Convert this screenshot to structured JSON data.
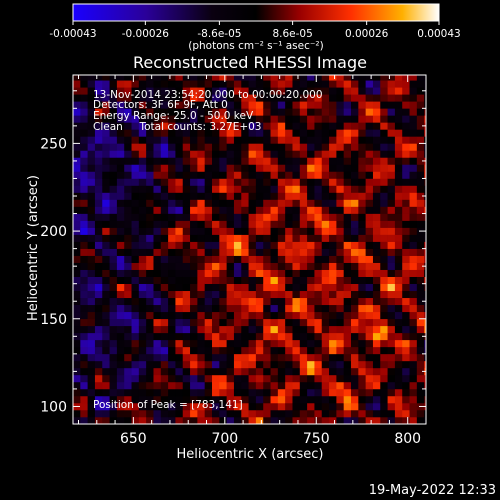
{
  "chart_data": {
    "type": "heatmap",
    "title": "Reconstructed RHESSI Image",
    "xlabel": "Heliocentric X (arcsec)",
    "ylabel": "Heliocentric Y (arcsec)",
    "xlim": [
      617,
      810
    ],
    "ylim": [
      90,
      289
    ],
    "x_ticks": [
      650,
      700,
      750,
      800
    ],
    "y_ticks": [
      100,
      150,
      200,
      250
    ],
    "colorbar": {
      "range": [
        -0.00043,
        0.00043
      ],
      "tick_values": [
        -0.00043,
        -0.00026,
        -8.6e-05,
        8.6e-05,
        0.00026,
        0.00043
      ],
      "tick_labels": [
        "-0.00043",
        "-0.00026",
        "-8.6e-05",
        "8.6e-05",
        "0.00026",
        "0.00043"
      ],
      "unit_label": "(photons cm⁻² s⁻¹ asec⁻²)",
      "colormap": [
        "#1a00ff",
        "#2a0099",
        "#000000",
        "#b00000",
        "#ff5000",
        "#ffb000",
        "#ffffff"
      ]
    },
    "annotations": [
      "13-Nov-2014 23:54:20.000 to 00:00:20.000",
      "Detectors: 3F 6F 9F, Att 0",
      "Energy Range: 25.0 - 50.0 keV",
      "Clean     Total counts: 3.27E+03"
    ],
    "peak_label": "Position of Peak = [783,141]",
    "peak": [
      783,
      141
    ],
    "pixel_size": 4
  },
  "footer": {
    "timestamp": "19-May-2022 12:33"
  }
}
